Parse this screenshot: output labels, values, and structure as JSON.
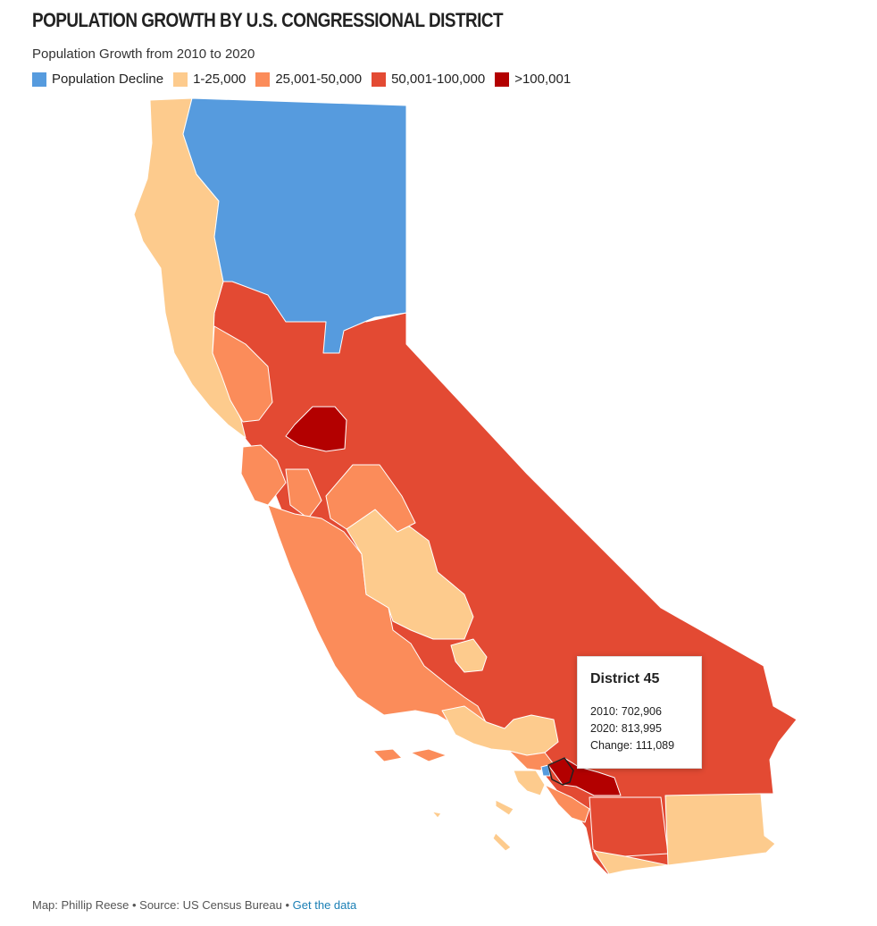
{
  "header": {
    "title": "POPULATION GROWTH BY U.S. CONGRESSIONAL DISTRICT",
    "subtitle": "Population Growth from 2010 to 2020"
  },
  "legend": [
    {
      "label": "Population Decline",
      "color": "#569bde"
    },
    {
      "label": "1-25,000",
      "color": "#fdcb8d"
    },
    {
      "label": "25,001-50,000",
      "color": "#fb8c5a"
    },
    {
      "label": "50,001-100,000",
      "color": "#e34a33"
    },
    {
      "label": ">100,001",
      "color": "#b30000"
    }
  ],
  "tooltip": {
    "title": "District 45",
    "line_2010": "2010: 702,906",
    "line_2020": "2020: 813,995",
    "line_change": "Change: 111,089"
  },
  "footer": {
    "credit": "Map: Phillip Reese • Source: US Census Bureau •",
    "link": "Get the data"
  }
}
